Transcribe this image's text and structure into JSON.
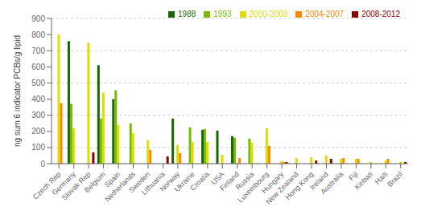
{
  "chart_data": {
    "type": "bar",
    "categories": [
      "Czech Rep",
      "Germany",
      "Slovak Rep",
      "Belgium",
      "Spain",
      "Netherlands",
      "Sweden",
      "Lithuania",
      "Norway",
      "Ukraine",
      "Croatia",
      "USA",
      "Finland",
      "Russia",
      "Luxembourg",
      "Hungary",
      "New Zealand",
      "Hong Kong",
      "Ireland",
      "Australia",
      "Fiji",
      "Kiribati",
      "Haiti",
      "Brazil"
    ],
    "series": [
      {
        "name": "1988",
        "color": "#1a6600",
        "values": [
          0,
          760,
          0,
          610,
          400,
          0,
          0,
          0,
          280,
          0,
          210,
          205,
          170,
          0,
          0,
          0,
          0,
          0,
          0,
          0,
          0,
          0,
          0,
          0
        ]
      },
      {
        "name": "1993",
        "color": "#77bb00",
        "values": [
          0,
          370,
          0,
          280,
          455,
          250,
          0,
          0,
          0,
          225,
          215,
          0,
          160,
          155,
          0,
          0,
          0,
          0,
          0,
          0,
          0,
          0,
          0,
          0
        ]
      },
      {
        "name": "2000-2003",
        "color": "#dddd00",
        "values": [
          800,
          220,
          750,
          440,
          240,
          190,
          145,
          0,
          115,
          135,
          135,
          55,
          0,
          130,
          220,
          15,
          35,
          40,
          50,
          30,
          30,
          10,
          20,
          10
        ]
      },
      {
        "name": "2004-2007",
        "color": "#ff8800",
        "values": [
          375,
          0,
          0,
          0,
          0,
          0,
          85,
          0,
          65,
          0,
          0,
          0,
          35,
          0,
          110,
          10,
          0,
          0,
          0,
          35,
          30,
          0,
          30,
          0
        ]
      },
      {
        "name": "2008-2012",
        "color": "#880000",
        "values": [
          0,
          0,
          70,
          0,
          0,
          0,
          0,
          45,
          0,
          0,
          0,
          0,
          0,
          0,
          0,
          10,
          0,
          20,
          30,
          0,
          0,
          0,
          0,
          10
        ]
      }
    ],
    "ylabel": "ng sum 6 indicator PCBs/g lipid",
    "ylim": [
      0,
      900
    ],
    "yticks": [
      0,
      100,
      200,
      300,
      400,
      500,
      600,
      700,
      800,
      900
    ],
    "grid": true,
    "legend": "upper right"
  }
}
